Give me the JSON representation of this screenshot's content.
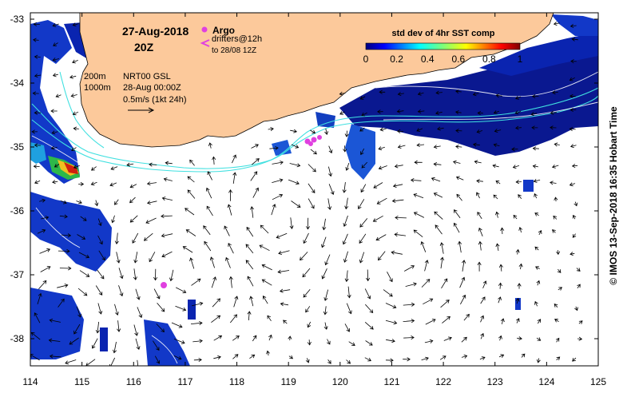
{
  "map": {
    "date": "27-Aug-2018",
    "time": "20Z",
    "argo_label": "Argo",
    "drifters_label": "drifters@12h",
    "drifters_to": "to 28/08 12Z",
    "contour_200": "200m",
    "contour_1000": "1000m",
    "product": "NRT00 GSL",
    "product_time": "28-Aug 00:00Z",
    "scale_label": "0.5m/s (1kt 24h)",
    "credit": "© IMOS 13-Sep-2018 16:35 Hobart Time",
    "colors": {
      "land": "#fcc99b",
      "argo": "#e040e0",
      "isobath": "#40e0e0",
      "velocity": "#000000"
    }
  },
  "colorbar": {
    "title": "std dev of 4hr SST comp",
    "ticks": [
      "0",
      "0.2",
      "0.4",
      "0.6",
      "0.8",
      "1"
    ]
  },
  "axes": {
    "x_ticks": [
      "114",
      "115",
      "116",
      "117",
      "118",
      "119",
      "120",
      "121",
      "122",
      "123",
      "124",
      "125"
    ],
    "y_ticks": [
      "-33",
      "-34",
      "-35",
      "-36",
      "-37",
      "-38"
    ],
    "xlim": [
      114,
      125
    ],
    "ylim": [
      -38.5,
      -33
    ]
  }
}
